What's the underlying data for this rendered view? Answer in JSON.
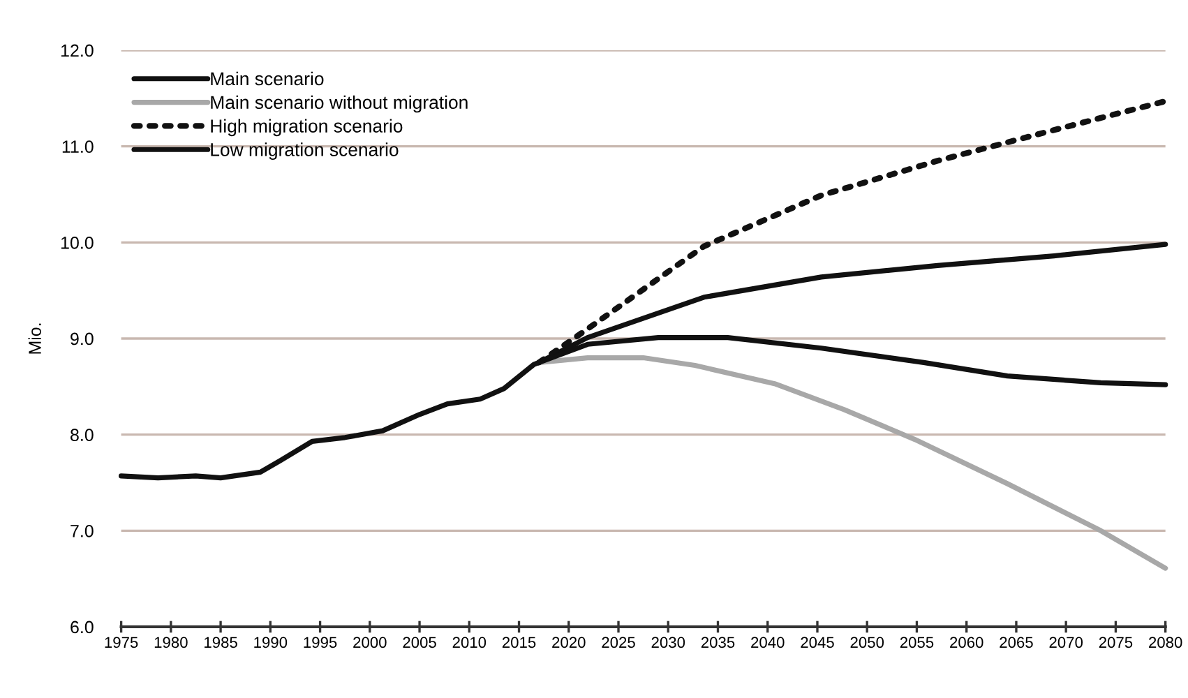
{
  "chart_data": {
    "type": "line",
    "ylabel": "Mio.",
    "xlim": [
      1975,
      2080
    ],
    "ylim": [
      6,
      12
    ],
    "xticks": [
      1975,
      1980,
      1985,
      1990,
      1995,
      2000,
      2005,
      2010,
      2015,
      2020,
      2025,
      2030,
      2035,
      2040,
      2045,
      2050,
      2055,
      2060,
      2065,
      2070,
      2075,
      2080
    ],
    "yticks": [
      {
        "value": 6,
        "label": "6.0"
      },
      {
        "value": 7,
        "label": "7.0"
      },
      {
        "value": 8,
        "label": "8.0"
      },
      {
        "value": 9,
        "label": "9.0"
      },
      {
        "value": 10,
        "label": "10.0"
      },
      {
        "value": 11,
        "label": "11.0"
      },
      {
        "value": 12,
        "label": "12.0"
      }
    ],
    "grid": "y",
    "legend": "top left",
    "marker": "none",
    "series": [
      {
        "name": "Main scenario",
        "color": "#111111",
        "line_style": "solid",
        "x": [
          1975,
          1978.7,
          1982.5,
          1985,
          1989,
          1991,
          1994.2,
          1997.5,
          2001.3,
          2005,
          2007.8,
          2011.1,
          2013.5,
          2016.5,
          2017,
          2021.9,
          2033.6,
          2045.4,
          2057.1,
          2068.8,
          2080
        ],
        "values": [
          7.57,
          7.55,
          7.57,
          7.55,
          7.61,
          7.73,
          7.93,
          7.97,
          8.04,
          8.21,
          8.32,
          8.37,
          8.48,
          8.73,
          8.75,
          9.01,
          9.43,
          9.64,
          9.76,
          9.86,
          9.98
        ]
      },
      {
        "name": "Main scenario without migration",
        "color": "#a8a8a8",
        "line_style": "solid",
        "x": [
          2017,
          2021.9,
          2027.5,
          2032.7,
          2040.7,
          2047.7,
          2054.8,
          2064.1,
          2073.5,
          2080
        ],
        "values": [
          8.75,
          8.8,
          8.8,
          8.72,
          8.53,
          8.26,
          7.95,
          7.49,
          7.0,
          6.61
        ]
      },
      {
        "name": "High migration scenario",
        "color": "#111111",
        "line_style": "dotted",
        "x": [
          2017,
          2021.9,
          2033.6,
          2045.4,
          2057.1,
          2068.8,
          2080
        ],
        "values": [
          8.75,
          9.1,
          9.96,
          10.49,
          10.85,
          11.17,
          11.47
        ]
      },
      {
        "name": "Low migration scenario",
        "color": "#111111",
        "line_style": "solid",
        "x": [
          2017,
          2021.9,
          2029,
          2036,
          2045.4,
          2055.7,
          2064.1,
          2073.5,
          2080
        ],
        "values": [
          8.75,
          8.94,
          9.01,
          9.01,
          8.9,
          8.75,
          8.61,
          8.54,
          8.52
        ]
      }
    ]
  }
}
